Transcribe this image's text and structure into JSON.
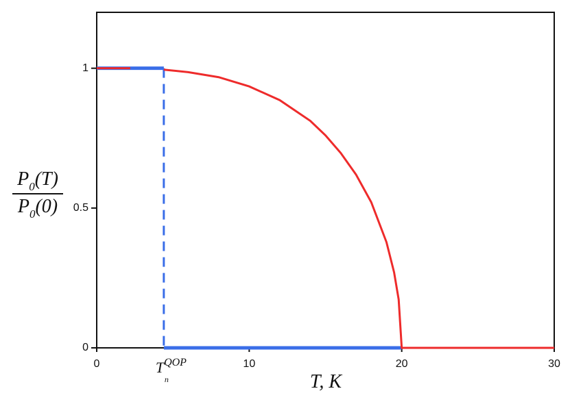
{
  "chart_data": {
    "type": "line",
    "xlabel": "T, K",
    "ylabel": {
      "numerator": [
        "P",
        "0",
        "(T)"
      ],
      "denominator": [
        "P",
        "0",
        "(0)"
      ]
    },
    "annotation": {
      "text": "T",
      "subscript": "n",
      "superscript": "QOP",
      "x": 4.4
    },
    "xlim": [
      0,
      30
    ],
    "ylim": [
      0,
      1.2
    ],
    "xticks": [
      0,
      10,
      20,
      30
    ],
    "yticks": [
      0,
      0.5,
      1
    ],
    "series": [
      {
        "color": "#3a6ee8",
        "width": 5,
        "dashed": false,
        "x": [
          0,
          4.4
        ],
        "values": [
          1,
          1
        ]
      },
      {
        "color": "#3a6ee8",
        "width": 5,
        "dashed": false,
        "x": [
          4.4,
          20
        ],
        "values": [
          0,
          0
        ]
      },
      {
        "color": "#3a6ee8",
        "width": 3,
        "dashed": true,
        "x": [
          4.4,
          4.4
        ],
        "values": [
          1,
          0
        ]
      },
      {
        "color": "#ee2b2b",
        "width": 3,
        "dashed": false,
        "x": [
          0,
          2.2
        ],
        "values": [
          1,
          1
        ]
      },
      {
        "color": "#ee2b2b",
        "width": 3,
        "dashed": false,
        "x": [
          4.4,
          6,
          8,
          10,
          12,
          14,
          15,
          16,
          17,
          18,
          19,
          19.5,
          19.8,
          20,
          30
        ],
        "values": [
          0.995,
          0.986,
          0.968,
          0.935,
          0.886,
          0.812,
          0.76,
          0.697,
          0.62,
          0.521,
          0.378,
          0.27,
          0.173,
          0,
          0
        ]
      }
    ]
  }
}
